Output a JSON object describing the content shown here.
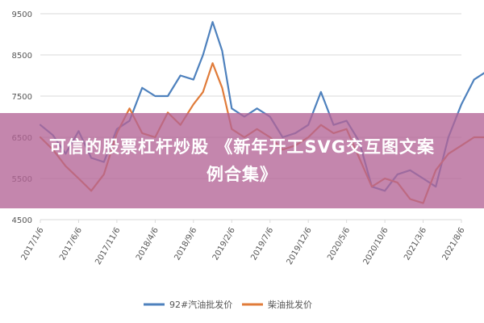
{
  "overlay": {
    "line1": "可信的股票杠杆炒股 《新年开工SVG交互图文案",
    "line2": "例合集》"
  },
  "chart_data": {
    "type": "line",
    "title": "",
    "xlabel": "",
    "ylabel": "",
    "ylim": [
      4500,
      9500
    ],
    "yticks": [
      "9500",
      "8500",
      "7500",
      "6500",
      "5500",
      "4500"
    ],
    "xticks": [
      "2017/1/6",
      "2017/6/6",
      "2017/11/6",
      "2018/4/6",
      "2018/9/6",
      "2019/2/6",
      "2019/7/6",
      "2019/12/6",
      "2020/5/6",
      "2020/10/6",
      "2021/3/6",
      "2021/8/6"
    ],
    "grid": true,
    "legend_position": "bottom",
    "x": [
      0,
      0.33,
      0.66,
      1,
      1.33,
      1.66,
      2,
      2.33,
      2.66,
      3,
      3.33,
      3.66,
      4,
      4.25,
      4.5,
      4.75,
      5,
      5.33,
      5.66,
      6,
      6.33,
      6.66,
      7,
      7.33,
      7.66,
      8,
      8.33,
      8.66,
      9,
      9.33,
      9.66,
      10,
      10.33,
      10.66,
      11,
      11.33,
      11.66
    ],
    "series": [
      {
        "name": "92#汽油批发价",
        "color": "#4e81bd",
        "values": [
          6800,
          6550,
          6100,
          6650,
          6000,
          5900,
          6700,
          6900,
          7700,
          7500,
          7500,
          8000,
          7900,
          8500,
          9300,
          8600,
          7200,
          7000,
          7200,
          7000,
          6500,
          6600,
          6800,
          7600,
          6800,
          6900,
          6400,
          5300,
          5200,
          5600,
          5700,
          5500,
          5300,
          6500,
          7300,
          7900,
          8100
        ]
      },
      {
        "name": "柴油批发价",
        "color": "#e07b39",
        "values": [
          6500,
          6200,
          5800,
          5500,
          5200,
          5600,
          6600,
          7200,
          6600,
          6500,
          7100,
          6800,
          7300,
          7600,
          8300,
          7700,
          6700,
          6500,
          6700,
          6500,
          6200,
          6300,
          6500,
          6800,
          6600,
          6700,
          6000,
          5300,
          5500,
          5400,
          5000,
          4900,
          5700,
          6100,
          6300,
          6500,
          6500
        ]
      }
    ]
  }
}
